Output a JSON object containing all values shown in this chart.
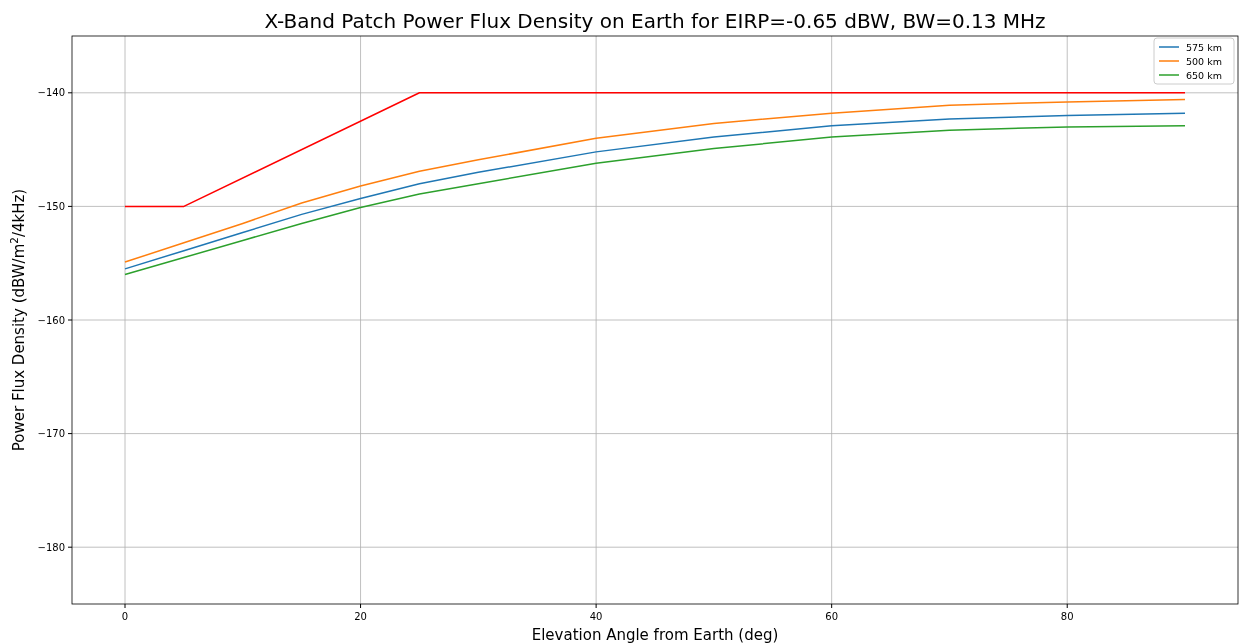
{
  "chart_data": {
    "type": "line",
    "title": "X-Band Patch Power Flux Density on Earth for EIRP=-0.65 dBW, BW=0.13 MHz",
    "xlabel": "Elevation Angle from Earth (deg)",
    "ylabel": "Power Flux Density (dBW/m$^{2}$/4kHz)",
    "xlim": [
      -4.5,
      94.5
    ],
    "xticks": [
      0,
      20,
      40,
      60,
      80
    ],
    "ylim": [
      -185,
      -135
    ],
    "yticks": [
      {
        "value": -180,
        "label": "−180"
      },
      {
        "value": -170,
        "label": "−170"
      },
      {
        "value": -160,
        "label": "−160"
      },
      {
        "value": -150,
        "label": "−150"
      },
      {
        "value": -140,
        "label": "−140"
      }
    ],
    "grid": true,
    "legend": "top right",
    "marker": "none",
    "line_style": "solid",
    "x": [
      0,
      5,
      10,
      15,
      20,
      25,
      30,
      40,
      50,
      60,
      70,
      80,
      90
    ],
    "series": [
      {
        "name": "575 km",
        "color": "#1f77b4",
        "values": [
          -155.5,
          -153.9,
          -152.3,
          -150.7,
          -149.3,
          -148.0,
          -147.0,
          -145.2,
          -143.9,
          -142.9,
          -142.3,
          -142.0,
          -141.8
        ]
      },
      {
        "name": "500 km",
        "color": "#ff7f0e",
        "values": [
          -154.9,
          -153.2,
          -151.5,
          -149.7,
          -148.2,
          -146.9,
          -145.9,
          -144.0,
          -142.7,
          -141.8,
          -141.1,
          -140.8,
          -140.6
        ]
      },
      {
        "name": "650 km",
        "color": "#2ca02c",
        "values": [
          -156.0,
          -154.5,
          -153.0,
          -151.5,
          -150.1,
          -148.9,
          -148.0,
          -146.2,
          -144.9,
          -143.9,
          -143.3,
          -143.0,
          -142.9
        ]
      },
      {
        "color": "#ff0000",
        "x": [
          0,
          5,
          25,
          90
        ],
        "values": [
          -150,
          -150,
          -140,
          -140
        ]
      }
    ]
  }
}
